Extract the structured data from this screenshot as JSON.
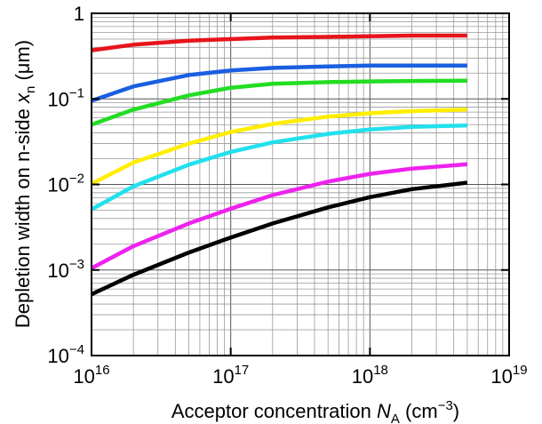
{
  "chart_data": {
    "type": "line",
    "title": "",
    "xlabel": {
      "text": "Acceptor concentration ",
      "var": "N",
      "sub": "A",
      "unit_pre": " (cm",
      "unit_sup": "−3",
      "unit_post": ")"
    },
    "ylabel": {
      "text": "Depletion width on n-side ",
      "var": "x",
      "sub": "n",
      "unit": " (μm)"
    },
    "x_scale": "log",
    "y_scale": "log",
    "xlim": [
      1e+16,
      1e+19
    ],
    "ylim": [
      0.0001,
      1
    ],
    "grid": true,
    "x_ticks": [
      {
        "value": 1e+16,
        "base": "10",
        "exp": "16"
      },
      {
        "value": 1e+17,
        "base": "10",
        "exp": "17"
      },
      {
        "value": 1e+18,
        "base": "10",
        "exp": "18"
      },
      {
        "value": 1e+19,
        "base": "10",
        "exp": "19"
      }
    ],
    "y_ticks": [
      {
        "value": 1,
        "base": "1",
        "exp": ""
      },
      {
        "value": 0.1,
        "base": "10",
        "exp": "−1"
      },
      {
        "value": 0.01,
        "base": "10",
        "exp": "−2"
      },
      {
        "value": 0.001,
        "base": "10",
        "exp": "−3"
      },
      {
        "value": 0.0001,
        "base": "10",
        "exp": "−4"
      }
    ],
    "x": [
      1e+16,
      2e+16,
      5e+16,
      1e+17,
      2e+17,
      5e+17,
      1e+18,
      2e+18,
      5e+18
    ],
    "series": [
      {
        "color": "#e8141c",
        "values": [
          0.37,
          0.43,
          0.48,
          0.5,
          0.52,
          0.53,
          0.54,
          0.55,
          0.55
        ]
      },
      {
        "color": "#1a5fe0",
        "values": [
          0.095,
          0.14,
          0.19,
          0.215,
          0.23,
          0.24,
          0.245,
          0.245,
          0.245
        ]
      },
      {
        "color": "#22dd22",
        "values": [
          0.05,
          0.075,
          0.11,
          0.135,
          0.15,
          0.157,
          0.16,
          0.162,
          0.163
        ]
      },
      {
        "color": "#ffee00",
        "values": [
          0.0102,
          0.018,
          0.03,
          0.041,
          0.051,
          0.062,
          0.068,
          0.072,
          0.075
        ]
      },
      {
        "color": "#22e0ee",
        "values": [
          0.0051,
          0.0095,
          0.017,
          0.024,
          0.031,
          0.039,
          0.044,
          0.047,
          0.049
        ]
      },
      {
        "color": "#ee22ee",
        "values": [
          0.00105,
          0.0019,
          0.0035,
          0.0052,
          0.0075,
          0.0108,
          0.0133,
          0.0153,
          0.0172
        ]
      },
      {
        "color": "#000000",
        "values": [
          0.00052,
          0.00088,
          0.0016,
          0.0024,
          0.0035,
          0.0054,
          0.0071,
          0.0088,
          0.0105
        ]
      }
    ]
  }
}
